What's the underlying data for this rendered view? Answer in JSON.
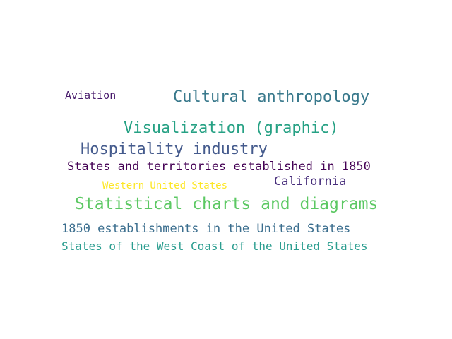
{
  "words": [
    {
      "text": "Aviation",
      "color": "#481a6c"
    },
    {
      "text": "Cultural anthropology",
      "color": "#39798c"
    },
    {
      "text": "Visualization (graphic)",
      "color": "#26a184"
    },
    {
      "text": "Hospitality industry",
      "color": "#455b8d"
    },
    {
      "text": "States and territories established in 1850",
      "color": "#440154"
    },
    {
      "text": "Western United States",
      "color": "#fde725"
    },
    {
      "text": "California",
      "color": "#472d7b"
    },
    {
      "text": "Statistical charts and diagrams",
      "color": "#5cc863"
    },
    {
      "text": "1850 establishments in the United States",
      "color": "#3b6e8e"
    },
    {
      "text": "States of the West Coast of the United States",
      "color": "#2a9d8f"
    }
  ]
}
